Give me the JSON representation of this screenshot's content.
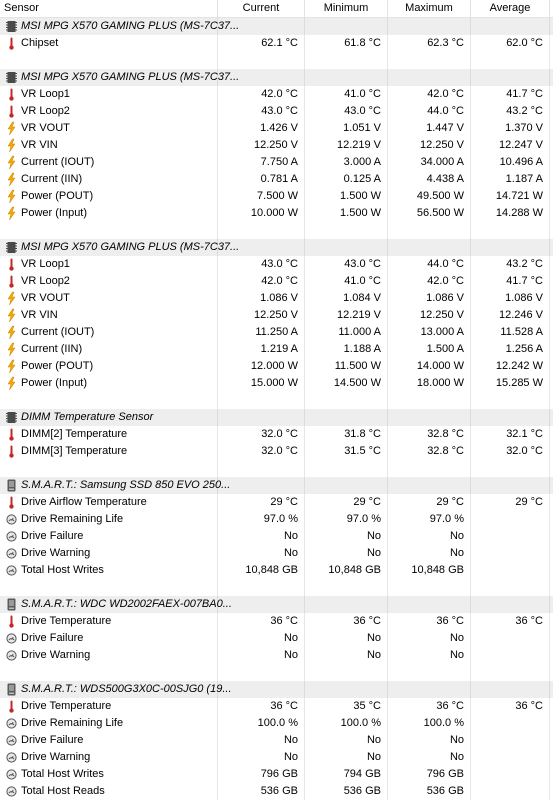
{
  "header": {
    "sensor": "Sensor",
    "current": "Current",
    "minimum": "Minimum",
    "maximum": "Maximum",
    "average": "Average"
  },
  "groups": [
    {
      "title": "MSI MPG X570 GAMING PLUS (MS-7C37...",
      "icon": "chip-icon",
      "rows": [
        {
          "icon": "thermometer-icon",
          "name": "Chipset",
          "current": "62.1 °C",
          "minimum": "61.8 °C",
          "maximum": "62.3 °C",
          "average": "62.0 °C"
        }
      ]
    },
    {
      "title": "MSI MPG X570 GAMING PLUS (MS-7C37...",
      "icon": "chip-icon",
      "rows": [
        {
          "icon": "thermometer-icon",
          "name": "VR Loop1",
          "current": "42.0 °C",
          "minimum": "41.0 °C",
          "maximum": "42.0 °C",
          "average": "41.7 °C"
        },
        {
          "icon": "thermometer-icon",
          "name": "VR Loop2",
          "current": "43.0 °C",
          "minimum": "43.0 °C",
          "maximum": "44.0 °C",
          "average": "43.2 °C"
        },
        {
          "icon": "lightning-icon",
          "name": "VR VOUT",
          "current": "1.426 V",
          "minimum": "1.051 V",
          "maximum": "1.447 V",
          "average": "1.370 V"
        },
        {
          "icon": "lightning-icon",
          "name": "VR VIN",
          "current": "12.250 V",
          "minimum": "12.219 V",
          "maximum": "12.250 V",
          "average": "12.247 V"
        },
        {
          "icon": "lightning-icon",
          "name": "Current (IOUT)",
          "current": "7.750 A",
          "minimum": "3.000 A",
          "maximum": "34.000 A",
          "average": "10.496 A"
        },
        {
          "icon": "lightning-icon",
          "name": "Current (IIN)",
          "current": "0.781 A",
          "minimum": "0.125 A",
          "maximum": "4.438 A",
          "average": "1.187 A"
        },
        {
          "icon": "lightning-icon",
          "name": "Power (POUT)",
          "current": "7.500 W",
          "minimum": "1.500 W",
          "maximum": "49.500 W",
          "average": "14.721 W"
        },
        {
          "icon": "lightning-icon",
          "name": "Power (Input)",
          "current": "10.000 W",
          "minimum": "1.500 W",
          "maximum": "56.500 W",
          "average": "14.288 W"
        }
      ]
    },
    {
      "title": "MSI MPG X570 GAMING PLUS (MS-7C37...",
      "icon": "chip-icon",
      "rows": [
        {
          "icon": "thermometer-icon",
          "name": "VR Loop1",
          "current": "43.0 °C",
          "minimum": "43.0 °C",
          "maximum": "44.0 °C",
          "average": "43.2 °C"
        },
        {
          "icon": "thermometer-icon",
          "name": "VR Loop2",
          "current": "42.0 °C",
          "minimum": "41.0 °C",
          "maximum": "42.0 °C",
          "average": "41.7 °C"
        },
        {
          "icon": "lightning-icon",
          "name": "VR VOUT",
          "current": "1.086 V",
          "minimum": "1.084 V",
          "maximum": "1.086 V",
          "average": "1.086 V"
        },
        {
          "icon": "lightning-icon",
          "name": "VR VIN",
          "current": "12.250 V",
          "minimum": "12.219 V",
          "maximum": "12.250 V",
          "average": "12.246 V"
        },
        {
          "icon": "lightning-icon",
          "name": "Current (IOUT)",
          "current": "11.250 A",
          "minimum": "11.000 A",
          "maximum": "13.000 A",
          "average": "11.528 A"
        },
        {
          "icon": "lightning-icon",
          "name": "Current (IIN)",
          "current": "1.219 A",
          "minimum": "1.188 A",
          "maximum": "1.500 A",
          "average": "1.256 A"
        },
        {
          "icon": "lightning-icon",
          "name": "Power (POUT)",
          "current": "12.000 W",
          "minimum": "11.500 W",
          "maximum": "14.000 W",
          "average": "12.242 W"
        },
        {
          "icon": "lightning-icon",
          "name": "Power (Input)",
          "current": "15.000 W",
          "minimum": "14.500 W",
          "maximum": "18.000 W",
          "average": "15.285 W"
        }
      ]
    },
    {
      "title": "DIMM Temperature Sensor",
      "icon": "chip-icon",
      "rows": [
        {
          "icon": "thermometer-icon",
          "name": "DIMM[2] Temperature",
          "current": "32.0 °C",
          "minimum": "31.8 °C",
          "maximum": "32.8 °C",
          "average": "32.1 °C"
        },
        {
          "icon": "thermometer-icon",
          "name": "DIMM[3] Temperature",
          "current": "32.0 °C",
          "minimum": "31.5 °C",
          "maximum": "32.8 °C",
          "average": "32.0 °C"
        }
      ]
    },
    {
      "title": "S.M.A.R.T.: Samsung SSD 850 EVO 250...",
      "icon": "drive-icon",
      "rows": [
        {
          "icon": "thermometer-icon",
          "name": "Drive Airflow Temperature",
          "current": "29 °C",
          "minimum": "29 °C",
          "maximum": "29 °C",
          "average": "29 °C"
        },
        {
          "icon": "gauge-icon",
          "name": "Drive Remaining Life",
          "current": "97.0 %",
          "minimum": "97.0 %",
          "maximum": "97.0 %",
          "average": ""
        },
        {
          "icon": "gauge-icon",
          "name": "Drive Failure",
          "current": "No",
          "minimum": "No",
          "maximum": "No",
          "average": ""
        },
        {
          "icon": "gauge-icon",
          "name": "Drive Warning",
          "current": "No",
          "minimum": "No",
          "maximum": "No",
          "average": ""
        },
        {
          "icon": "gauge-icon",
          "name": "Total Host Writes",
          "current": "10,848 GB",
          "minimum": "10,848 GB",
          "maximum": "10,848 GB",
          "average": ""
        }
      ]
    },
    {
      "title": "S.M.A.R.T.: WDC WD2002FAEX-007BA0...",
      "icon": "drive-icon",
      "rows": [
        {
          "icon": "thermometer-icon",
          "name": "Drive Temperature",
          "current": "36 °C",
          "minimum": "36 °C",
          "maximum": "36 °C",
          "average": "36 °C"
        },
        {
          "icon": "gauge-icon",
          "name": "Drive Failure",
          "current": "No",
          "minimum": "No",
          "maximum": "No",
          "average": ""
        },
        {
          "icon": "gauge-icon",
          "name": "Drive Warning",
          "current": "No",
          "minimum": "No",
          "maximum": "No",
          "average": ""
        }
      ]
    },
    {
      "title": "S.M.A.R.T.: WDS500G3X0C-00SJG0 (19...",
      "icon": "drive-icon",
      "rows": [
        {
          "icon": "thermometer-icon",
          "name": "Drive Temperature",
          "current": "36 °C",
          "minimum": "35 °C",
          "maximum": "36 °C",
          "average": "36 °C"
        },
        {
          "icon": "gauge-icon",
          "name": "Drive Remaining Life",
          "current": "100.0 %",
          "minimum": "100.0 %",
          "maximum": "100.0 %",
          "average": ""
        },
        {
          "icon": "gauge-icon",
          "name": "Drive Failure",
          "current": "No",
          "minimum": "No",
          "maximum": "No",
          "average": ""
        },
        {
          "icon": "gauge-icon",
          "name": "Drive Warning",
          "current": "No",
          "minimum": "No",
          "maximum": "No",
          "average": ""
        },
        {
          "icon": "gauge-icon",
          "name": "Total Host Writes",
          "current": "796 GB",
          "minimum": "794 GB",
          "maximum": "796 GB",
          "average": ""
        },
        {
          "icon": "gauge-icon",
          "name": "Total Host Reads",
          "current": "536 GB",
          "minimum": "536 GB",
          "maximum": "536 GB",
          "average": ""
        }
      ]
    }
  ]
}
